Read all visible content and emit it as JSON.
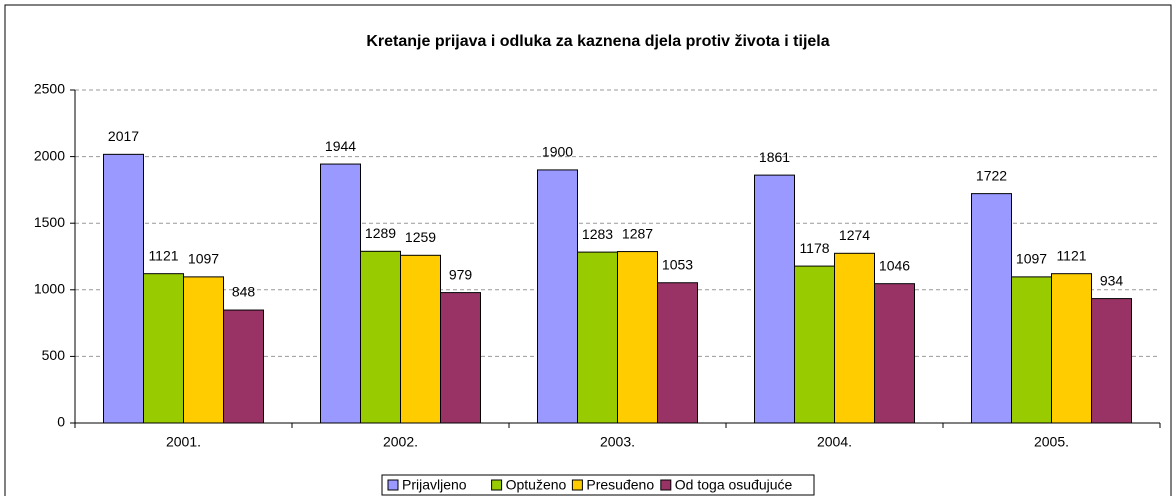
{
  "chart_data": {
    "type": "bar",
    "title": "Kretanje prijava i odluka za kaznena djela protiv života i tijela",
    "categories": [
      "2001.",
      "2002.",
      "2003.",
      "2004.",
      "2005."
    ],
    "series": [
      {
        "name": "Prijavljeno",
        "color": "#9999ff",
        "values": [
          2017,
          1944,
          1900,
          1861,
          1722
        ]
      },
      {
        "name": "Optuženo",
        "color": "#99cc00",
        "values": [
          1121,
          1289,
          1283,
          1178,
          1097
        ]
      },
      {
        "name": "Presuđeno",
        "color": "#ffcc00",
        "values": [
          1097,
          1259,
          1287,
          1274,
          1121
        ]
      },
      {
        "name": "Od toga osuđujuće",
        "color": "#993366",
        "values": [
          848,
          979,
          1053,
          1046,
          934
        ]
      }
    ],
    "ylim": [
      0,
      2500
    ],
    "yticks": [
      0,
      500,
      1000,
      1500,
      2000,
      2500
    ],
    "grid": true,
    "legend": "bottom"
  }
}
